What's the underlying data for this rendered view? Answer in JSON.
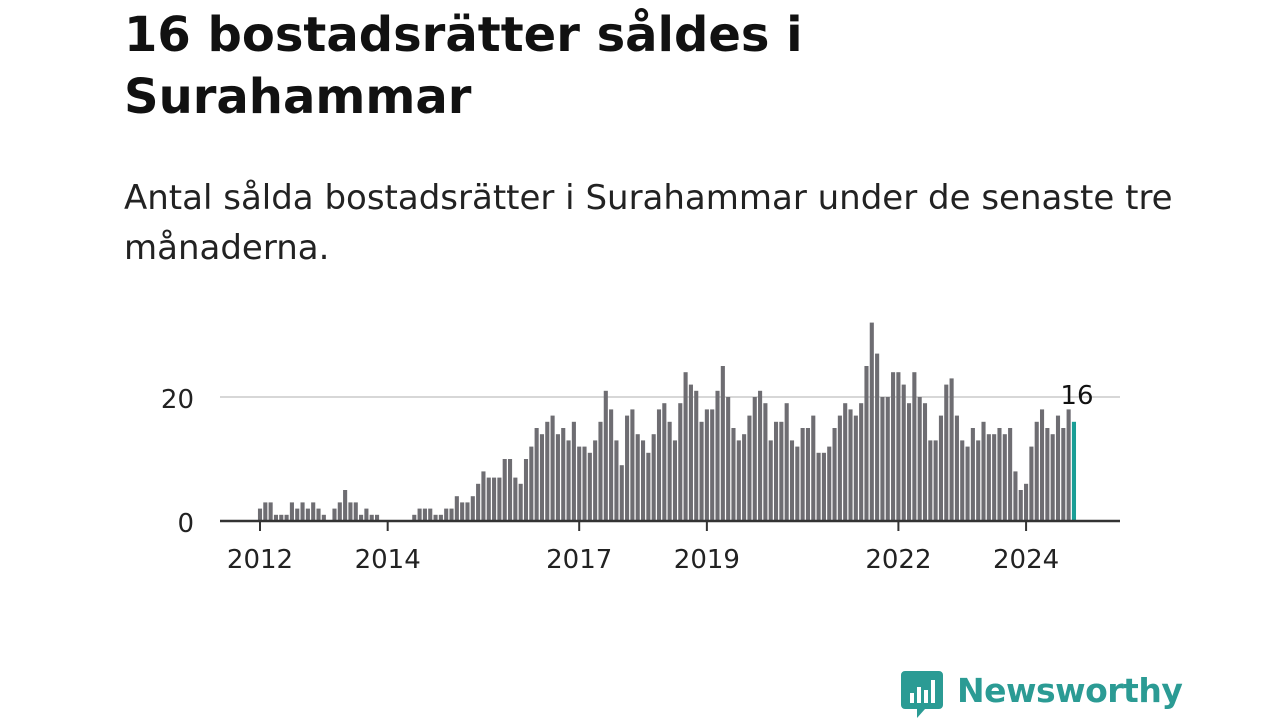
{
  "title": "16 bostadsrätter såldes i Surahammar",
  "subtitle": "Antal sålda bostadsrätter i Surahammar under de senaste tre månaderna.",
  "brand": {
    "name": "Newsworthy",
    "icon": "newsworthy-logo-icon",
    "color": "#2b9b94"
  },
  "chart_data": {
    "type": "bar",
    "title": "",
    "xlabel": "",
    "ylabel": "",
    "ylim": [
      0,
      32
    ],
    "yticks": [
      0,
      20
    ],
    "grid": true,
    "legend": "none",
    "bar_color": "#6e6d72",
    "highlight_color": "#1a9e96",
    "highlight_label": "16",
    "x_ticks": [
      {
        "label": "2012",
        "index": 0
      },
      {
        "label": "2014",
        "index": 24
      },
      {
        "label": "2017",
        "index": 60
      },
      {
        "label": "2019",
        "index": 84
      },
      {
        "label": "2022",
        "index": 120
      },
      {
        "label": "2024",
        "index": 144
      }
    ],
    "values": [
      2,
      3,
      3,
      1,
      1,
      1,
      3,
      2,
      3,
      2,
      3,
      2,
      1,
      0,
      2,
      3,
      5,
      3,
      3,
      1,
      2,
      1,
      1,
      0,
      0,
      0,
      0,
      0,
      0,
      1,
      2,
      2,
      2,
      1,
      1,
      2,
      2,
      4,
      3,
      3,
      4,
      6,
      8,
      7,
      7,
      7,
      10,
      10,
      7,
      6,
      10,
      12,
      15,
      14,
      16,
      17,
      14,
      15,
      13,
      16,
      12,
      12,
      11,
      13,
      16,
      21,
      18,
      13,
      9,
      17,
      18,
      14,
      13,
      11,
      14,
      18,
      19,
      16,
      13,
      19,
      24,
      22,
      21,
      16,
      18,
      18,
      21,
      25,
      20,
      15,
      13,
      14,
      17,
      20,
      21,
      19,
      13,
      16,
      16,
      19,
      13,
      12,
      15,
      15,
      17,
      11,
      11,
      12,
      15,
      17,
      19,
      18,
      17,
      19,
      25,
      32,
      27,
      20,
      20,
      24,
      24,
      22,
      19,
      24,
      20,
      19,
      13,
      13,
      17,
      22,
      23,
      17,
      13,
      12,
      15,
      13,
      16,
      14,
      14,
      15,
      14,
      15,
      8,
      5,
      6,
      12,
      16,
      18,
      15,
      14,
      17,
      15,
      18,
      16
    ]
  }
}
